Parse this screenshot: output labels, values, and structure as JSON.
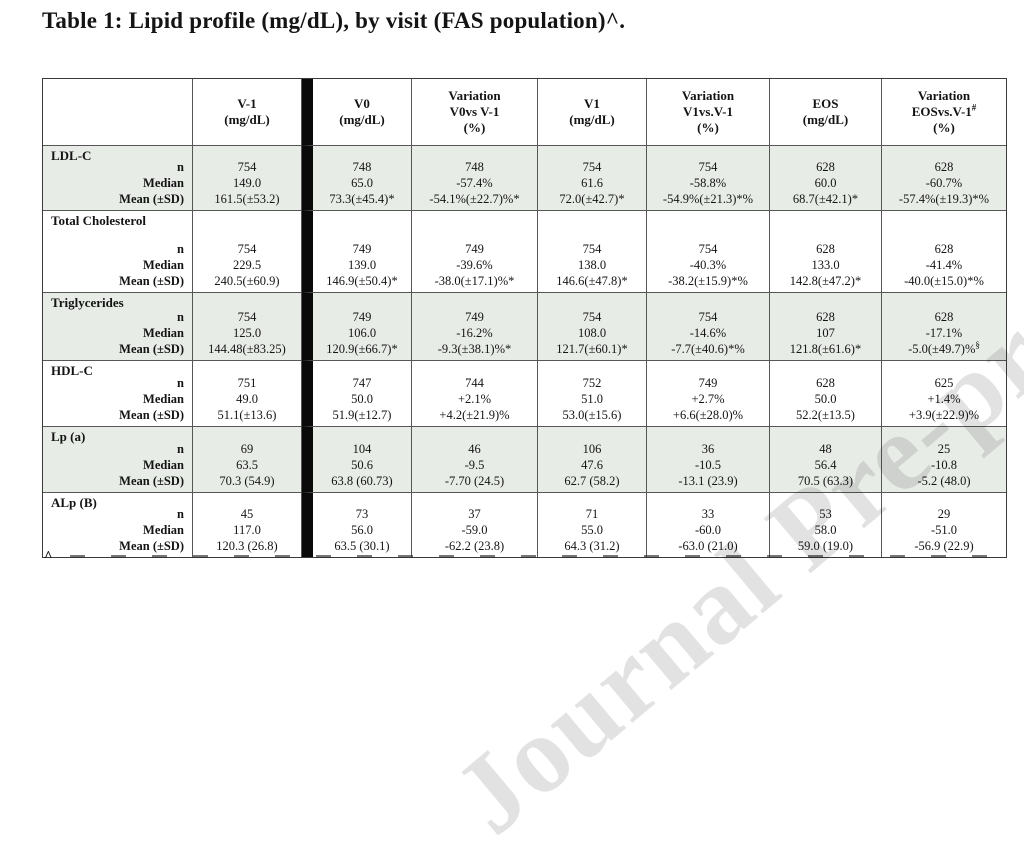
{
  "title": "Table 1: Lipid profile (mg/dL), by visit (FAS population)^.",
  "watermark": "Journal Pre-proof",
  "footnote_marker": "^",
  "colors": {
    "row_shade": "#e8ece7",
    "divider_bar": "#0a0a0a",
    "border": "#565656"
  },
  "table": {
    "header": {
      "col_blank": "",
      "col_vm1": "V-1\n(mg/dL)",
      "col_v0": "V0\n(mg/dL)",
      "col_var_v0": "Variation\nV0vs V-1\n(%)",
      "col_v1": "V1\n(mg/dL)",
      "col_var_v1": "Variation\nV1vs.V-1\n(%)",
      "col_eos": "EOS\n(mg/dL)",
      "col_var_eos_line1": "Variation",
      "col_var_eos_line2": "EOSvs.V-1",
      "col_var_eos_sup": "#",
      "col_var_eos_line3": "(%)"
    },
    "row_labels": {
      "n": "n",
      "median": "Median",
      "mean": "Mean (±SD)"
    },
    "groups": [
      {
        "name": "LDL-C",
        "n": [
          "754",
          "748",
          "748",
          "754",
          "754",
          "628",
          "628"
        ],
        "median": [
          "149.0",
          "65.0",
          "-57.4%",
          "61.6",
          "-58.8%",
          "60.0",
          "-60.7%"
        ],
        "mean": [
          "161.5(±53.2)",
          "73.3(±45.4)*",
          "-54.1%(±22.7)%*",
          "72.0(±42.7)*",
          "-54.9%(±21.3)*%",
          "68.7(±42.1)*",
          "-57.4%(±19.3)*%"
        ]
      },
      {
        "name": "Total Cholesterol",
        "n": [
          "754",
          "749",
          "749",
          "754",
          "754",
          "628",
          "628"
        ],
        "median": [
          "229.5",
          "139.0",
          "-39.6%",
          "138.0",
          "-40.3%",
          "133.0",
          "-41.4%"
        ],
        "mean": [
          "240.5(±60.9)",
          "146.9(±50.4)*",
          "-38.0(±17.1)%*",
          "146.6(±47.8)*",
          "-38.2(±15.9)*%",
          "142.8(±47.2)*",
          "-40.0(±15.0)*%"
        ]
      },
      {
        "name": "Triglycerides",
        "n": [
          "754",
          "749",
          "749",
          "754",
          "754",
          "628",
          "628"
        ],
        "median": [
          "125.0",
          "106.0",
          "-16.2%",
          "108.0",
          "-14.6%",
          "107",
          "-17.1%"
        ],
        "mean": [
          "144.48(±83.25)",
          "120.9(±66.7)*",
          "-9.3(±38.1)%*",
          "121.7(±60.1)*",
          "-7.7(±40.6)*%",
          "121.8(±61.6)*",
          "-5.0(±49.7)%"
        ],
        "mean_sup6": "§"
      },
      {
        "name": "HDL-C",
        "n": [
          "751",
          "747",
          "744",
          "752",
          "749",
          "628",
          "625"
        ],
        "median": [
          "49.0",
          "50.0",
          "+2.1%",
          "51.0",
          "+2.7%",
          "50.0",
          "+1.4%"
        ],
        "mean": [
          "51.1(±13.6)",
          "51.9(±12.7)",
          "+4.2(±21.9)%",
          "53.0(±15.6)",
          "+6.6(±28.0)%",
          "52.2(±13.5)",
          "+3.9(±22.9)%"
        ]
      },
      {
        "name": "Lp (a)",
        "n": [
          "69",
          "104",
          "46",
          "106",
          "36",
          "48",
          "25"
        ],
        "median": [
          "63.5",
          "50.6",
          "-9.5",
          "47.6",
          "-10.5",
          "56.4",
          "-10.8"
        ],
        "mean": [
          "70.3 (54.9)",
          "63.8 (60.73)",
          "-7.70 (24.5)",
          "62.7 (58.2)",
          "-13.1 (23.9)",
          "70.5 (63.3)",
          "-5.2 (48.0)"
        ]
      },
      {
        "name": "ALp (B)",
        "n": [
          "45",
          "73",
          "37",
          "71",
          "33",
          "53",
          "29"
        ],
        "median": [
          "117.0",
          "56.0",
          "-59.0",
          "55.0",
          "-60.0",
          "58.0",
          "-51.0"
        ],
        "mean": [
          "120.3 (26.8)",
          "63.5 (30.1)",
          "-62.2 (23.8)",
          "64.3 (31.2)",
          "-63.0 (21.0)",
          "59.0 (19.0)",
          "-56.9 (22.9)"
        ]
      }
    ]
  }
}
